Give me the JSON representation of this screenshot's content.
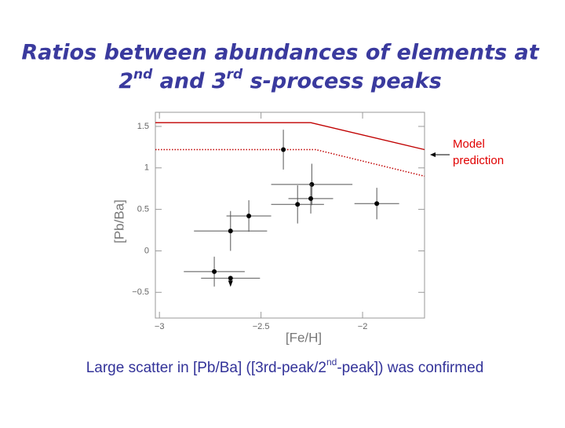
{
  "title": {
    "line1": "Ratios between abundances of elements at",
    "line2": [
      "2",
      "nd",
      " and 3",
      "rd",
      " s-process peaks"
    ]
  },
  "chart_data": {
    "type": "scatter",
    "xlabel": "[Fe/H]",
    "ylabel": "[Pb/Ba]",
    "xlim": [
      -3.02,
      -1.695
    ],
    "ylim": [
      -0.81,
      1.67
    ],
    "xticks": [
      {
        "value": -3,
        "label": "−3"
      },
      {
        "value": -2.5,
        "label": "−2.5"
      },
      {
        "value": -2,
        "label": "−2"
      }
    ],
    "yticks": [
      {
        "value": -0.5,
        "label": "−0.5"
      },
      0,
      0.5,
      1,
      1.5
    ],
    "series": [
      {
        "color": "#000000",
        "x": [
          -2.39,
          -2.32,
          -2.25,
          -2.255,
          -1.93,
          -2.56,
          -2.65,
          -2.73,
          -2.65
        ],
        "values": [
          1.22,
          0.56,
          0.8,
          0.63,
          0.57,
          0.42,
          0.24,
          -0.25,
          -0.33
        ],
        "xerr": [
          0,
          0.13,
          0.2,
          0.11,
          0.11,
          0.11,
          0.18,
          0.15,
          0.145
        ],
        "yerr": [
          0.24,
          0.23,
          0.25,
          0.18,
          0.19,
          0.19,
          0.24,
          0.18,
          0
        ],
        "upper_limit": [
          false,
          false,
          false,
          false,
          false,
          false,
          false,
          false,
          true
        ]
      }
    ],
    "model_lines": [
      {
        "color": "#c00000",
        "style": "solid",
        "x": [
          -3.02,
          -2.255,
          -1.695
        ],
        "values": [
          1.545,
          1.545,
          1.22
        ]
      },
      {
        "color": "#c00000",
        "style": "dotted",
        "x": [
          -3.02,
          -2.23,
          -1.695
        ],
        "values": [
          1.22,
          1.22,
          0.9
        ]
      }
    ],
    "annotation": {
      "lines": [
        "Model",
        "prediction"
      ],
      "color": "#e00000"
    }
  },
  "caption": [
    "Large scatter in [Pb/Ba] ([3rd-peak/2",
    "nd",
    "-peak]) was confirmed"
  ]
}
